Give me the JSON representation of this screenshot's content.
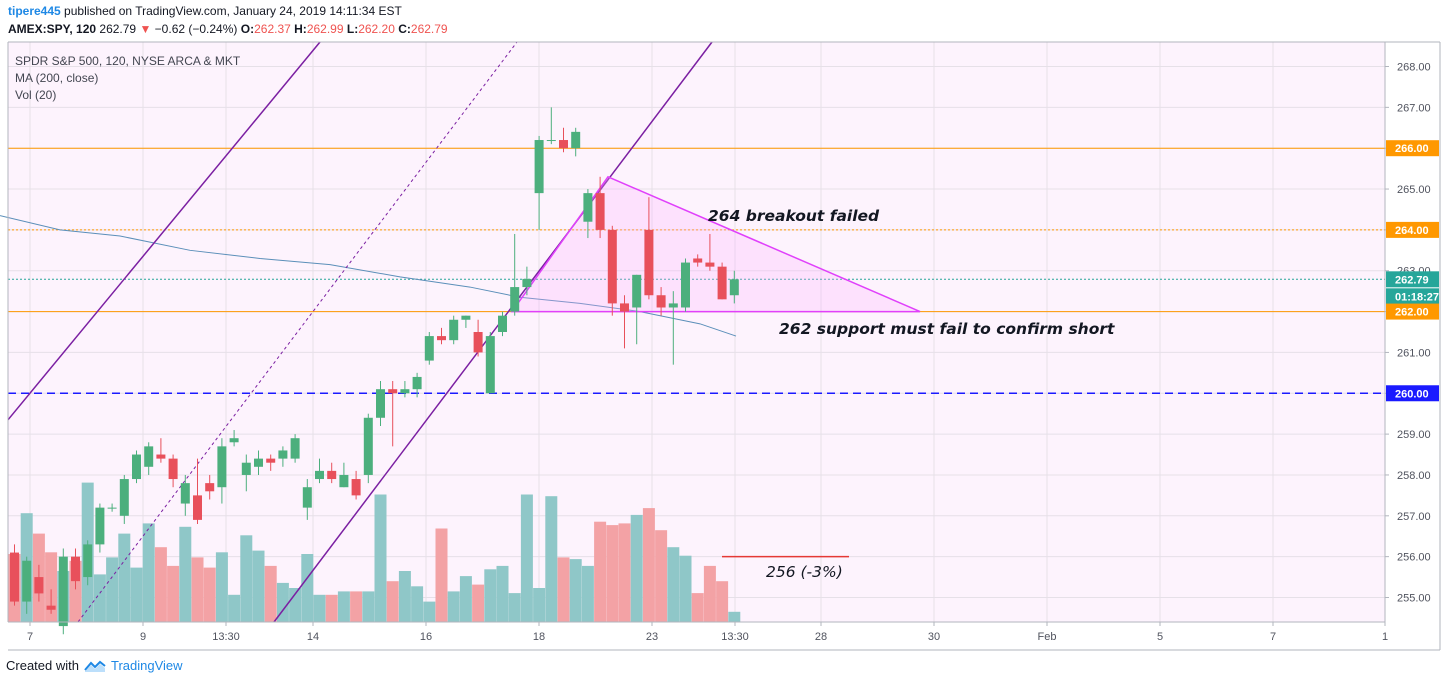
{
  "header": {
    "author": "tipere445",
    "published_text": "published on TradingView.com, January 24, 2019 14:11:34 EST",
    "symbol": "AMEX:SPY, 120",
    "last": "262.79",
    "change": "−0.62 (−0.24%)",
    "ohlc": {
      "o_label": "O:",
      "o": "262.37",
      "h_label": "H:",
      "h": "262.99",
      "l_label": "L:",
      "l": "262.20",
      "c_label": "C:",
      "c": "262.79"
    }
  },
  "legend": {
    "line1": "SPDR S&P 500, 120, NYSE ARCA & MKT",
    "line2": "MA (200, close)",
    "line3": "Vol (20)"
  },
  "annotations": {
    "breakout": "264 breakout failed",
    "support": "262 support must fail to confirm short",
    "target": "256 (-3%)"
  },
  "footer": {
    "created_with": "Created with",
    "brand": "TradingView"
  },
  "chart_data": {
    "type": "candlestick",
    "ylim": [
      254.4,
      268.6
    ],
    "y_ticks": [
      255,
      256,
      257,
      258,
      259,
      260,
      261,
      262,
      263,
      264,
      265,
      266,
      267,
      268
    ],
    "x_ticks": [
      "7",
      "9",
      "13:30",
      "14",
      "16",
      "18",
      "23",
      "13:30",
      "28",
      "30",
      "Feb",
      "5",
      "7",
      "1"
    ],
    "price_tags": [
      {
        "label": "266.00",
        "value": 266.0,
        "color": "#ff9800"
      },
      {
        "label": "264.00",
        "value": 264.0,
        "color": "#ff9800"
      },
      {
        "label": "262.79",
        "value": 262.79,
        "color": "#26a69a"
      },
      {
        "label": "01:18:27",
        "value": 262.4,
        "color": "#26a69a"
      },
      {
        "label": "262.00",
        "value": 262.0,
        "color": "#ff9800"
      },
      {
        "label": "260.00",
        "value": 260.0,
        "color": "#1a1aff"
      }
    ],
    "horizontal_lines": [
      {
        "value": 266.0,
        "color": "#ff9800",
        "style": "solid"
      },
      {
        "value": 264.0,
        "color": "#ff9800",
        "style": "dotted"
      },
      {
        "value": 262.79,
        "color": "#26a69a",
        "style": "dotted"
      },
      {
        "value": 262.0,
        "color": "#ff9800",
        "style": "solid"
      },
      {
        "value": 260.0,
        "color": "#1a1aff",
        "style": "dashed"
      }
    ],
    "candles": [
      [
        256.1,
        256.3,
        254.8,
        254.9
      ],
      [
        254.9,
        256.0,
        254.6,
        255.9
      ],
      [
        255.5,
        255.8,
        254.9,
        255.1
      ],
      [
        254.8,
        255.2,
        254.6,
        254.7
      ],
      [
        254.3,
        256.2,
        254.1,
        256.0
      ],
      [
        256.0,
        256.2,
        255.2,
        255.4
      ],
      [
        255.5,
        256.4,
        255.3,
        256.3
      ],
      [
        256.3,
        257.3,
        256.1,
        257.2
      ],
      [
        257.2,
        257.3,
        257.1,
        257.2
      ],
      [
        257.0,
        258.0,
        256.8,
        257.9
      ],
      [
        257.9,
        258.6,
        257.8,
        258.5
      ],
      [
        258.2,
        258.8,
        258.0,
        258.7
      ],
      [
        258.5,
        258.9,
        258.3,
        258.4
      ],
      [
        258.4,
        258.5,
        257.7,
        257.9
      ],
      [
        257.3,
        258.0,
        257.0,
        257.8
      ],
      [
        257.5,
        258.4,
        256.8,
        256.9
      ],
      [
        257.8,
        258.0,
        257.4,
        257.6
      ],
      [
        257.7,
        258.9,
        257.3,
        258.7
      ],
      [
        258.8,
        259.1,
        258.7,
        258.9
      ],
      [
        258.0,
        258.5,
        257.6,
        258.3
      ],
      [
        258.2,
        258.6,
        258.0,
        258.4
      ],
      [
        258.4,
        258.5,
        258.1,
        258.3
      ],
      [
        258.4,
        258.7,
        258.2,
        258.6
      ],
      [
        258.4,
        259.0,
        258.3,
        258.9
      ],
      [
        257.2,
        257.9,
        256.9,
        257.7
      ],
      [
        257.9,
        258.4,
        257.8,
        258.1
      ],
      [
        258.1,
        258.3,
        257.8,
        257.9
      ],
      [
        257.7,
        258.3,
        257.7,
        258.0
      ],
      [
        257.9,
        258.1,
        257.4,
        257.5
      ],
      [
        258.0,
        259.5,
        257.8,
        259.4
      ],
      [
        259.4,
        260.3,
        259.2,
        260.1
      ],
      [
        260.1,
        260.3,
        258.7,
        260.0
      ],
      [
        260.0,
        260.3,
        259.9,
        260.1
      ],
      [
        260.1,
        260.5,
        259.9,
        260.4
      ],
      [
        260.8,
        261.5,
        260.7,
        261.4
      ],
      [
        261.4,
        261.6,
        261.2,
        261.3
      ],
      [
        261.3,
        261.9,
        261.2,
        261.8
      ],
      [
        261.8,
        261.9,
        261.6,
        261.9
      ],
      [
        261.5,
        261.8,
        260.9,
        261.0
      ],
      [
        260.0,
        261.5,
        260.0,
        261.4
      ],
      [
        261.5,
        262.0,
        261.4,
        261.9
      ],
      [
        262.0,
        263.9,
        261.9,
        262.6
      ],
      [
        262.6,
        263.1,
        262.4,
        262.8
      ],
      [
        264.9,
        266.3,
        264.0,
        266.2
      ],
      [
        266.2,
        267.0,
        266.1,
        266.2
      ],
      [
        266.2,
        266.5,
        265.9,
        266.0
      ],
      [
        266.0,
        266.5,
        265.8,
        266.4
      ],
      [
        264.2,
        265.0,
        263.8,
        264.9
      ],
      [
        264.9,
        265.3,
        263.8,
        264.0
      ],
      [
        264.0,
        264.1,
        261.9,
        262.2
      ],
      [
        262.2,
        262.4,
        261.1,
        262.0
      ],
      [
        262.1,
        262.9,
        261.2,
        262.9
      ],
      [
        264.0,
        264.8,
        262.3,
        262.4
      ],
      [
        262.4,
        262.6,
        261.9,
        262.1
      ],
      [
        262.1,
        262.5,
        260.7,
        262.2
      ],
      [
        262.1,
        263.3,
        262.0,
        263.2
      ],
      [
        263.3,
        263.4,
        263.1,
        263.2
      ],
      [
        263.2,
        263.9,
        263.0,
        263.1
      ],
      [
        263.1,
        263.2,
        262.3,
        262.3
      ],
      [
        262.4,
        263.0,
        262.2,
        262.79
      ]
    ],
    "volume": [
      0.4,
      0.64,
      0.52,
      0.41,
      0.3,
      0.36,
      0.82,
      0.28,
      0.38,
      0.52,
      0.32,
      0.58,
      0.44,
      0.33,
      0.56,
      0.38,
      0.32,
      0.41,
      0.16,
      0.51,
      0.42,
      0.33,
      0.23,
      0.2,
      0.4,
      0.16,
      0.16,
      0.18,
      0.18,
      0.18,
      0.75,
      0.24,
      0.3,
      0.21,
      0.12,
      0.55,
      0.18,
      0.27,
      0.22,
      0.31,
      0.33,
      0.17,
      0.75,
      0.2,
      0.74,
      0.38,
      0.37,
      0.33,
      0.59,
      0.57,
      0.58,
      0.63,
      0.67,
      0.54,
      0.44,
      0.39,
      0.17,
      0.33,
      0.24,
      0.06
    ],
    "ma200": [
      [
        0,
        264.35
      ],
      [
        60,
        264.0
      ],
      [
        120,
        263.85
      ],
      [
        190,
        263.5
      ],
      [
        260,
        263.3
      ],
      [
        330,
        263.15
      ],
      [
        400,
        262.85
      ],
      [
        470,
        262.6
      ],
      [
        520,
        262.35
      ],
      [
        580,
        262.2
      ],
      [
        640,
        262.0
      ],
      [
        700,
        261.7
      ],
      [
        736,
        261.4
      ]
    ],
    "drawings": {
      "channel_color": "#7b1fa2",
      "triangle_color": "#e040fb"
    }
  }
}
